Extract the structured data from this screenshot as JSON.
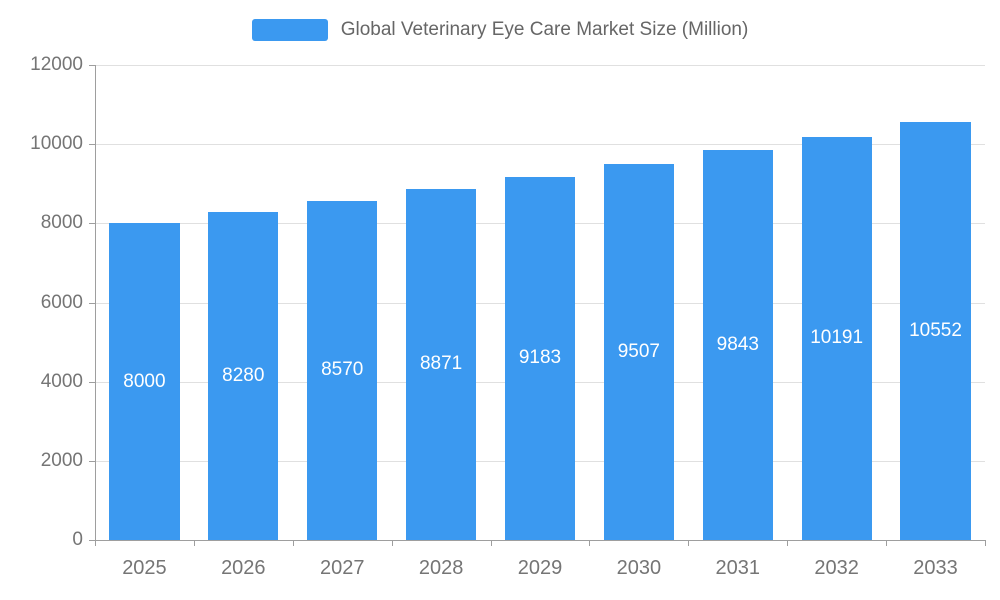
{
  "chart_data": {
    "type": "bar",
    "title": "Global Veterinary Eye Care Market Size (Million)",
    "legend_label": "Global Veterinary Eye Care Market Size (Million)",
    "categories": [
      "2025",
      "2026",
      "2027",
      "2028",
      "2029",
      "2030",
      "2031",
      "2032",
      "2033"
    ],
    "values": [
      8000,
      8280,
      8570,
      8871,
      9183,
      9507,
      9843,
      10191,
      10552
    ],
    "xlabel": "",
    "ylabel": "",
    "ylim": [
      0,
      12000
    ],
    "ytick_interval": 2000,
    "yticks": [
      0,
      2000,
      4000,
      6000,
      8000,
      10000,
      12000
    ],
    "grid": true,
    "legend_position": "top",
    "value_label_position": "inside-center",
    "colors": {
      "bar": "#3B99F0",
      "bar_label": "#ffffff",
      "grid": "#e0e0e0",
      "axis": "#9e9e9e",
      "axis_text": "#757575",
      "title_text": "#666666"
    }
  }
}
